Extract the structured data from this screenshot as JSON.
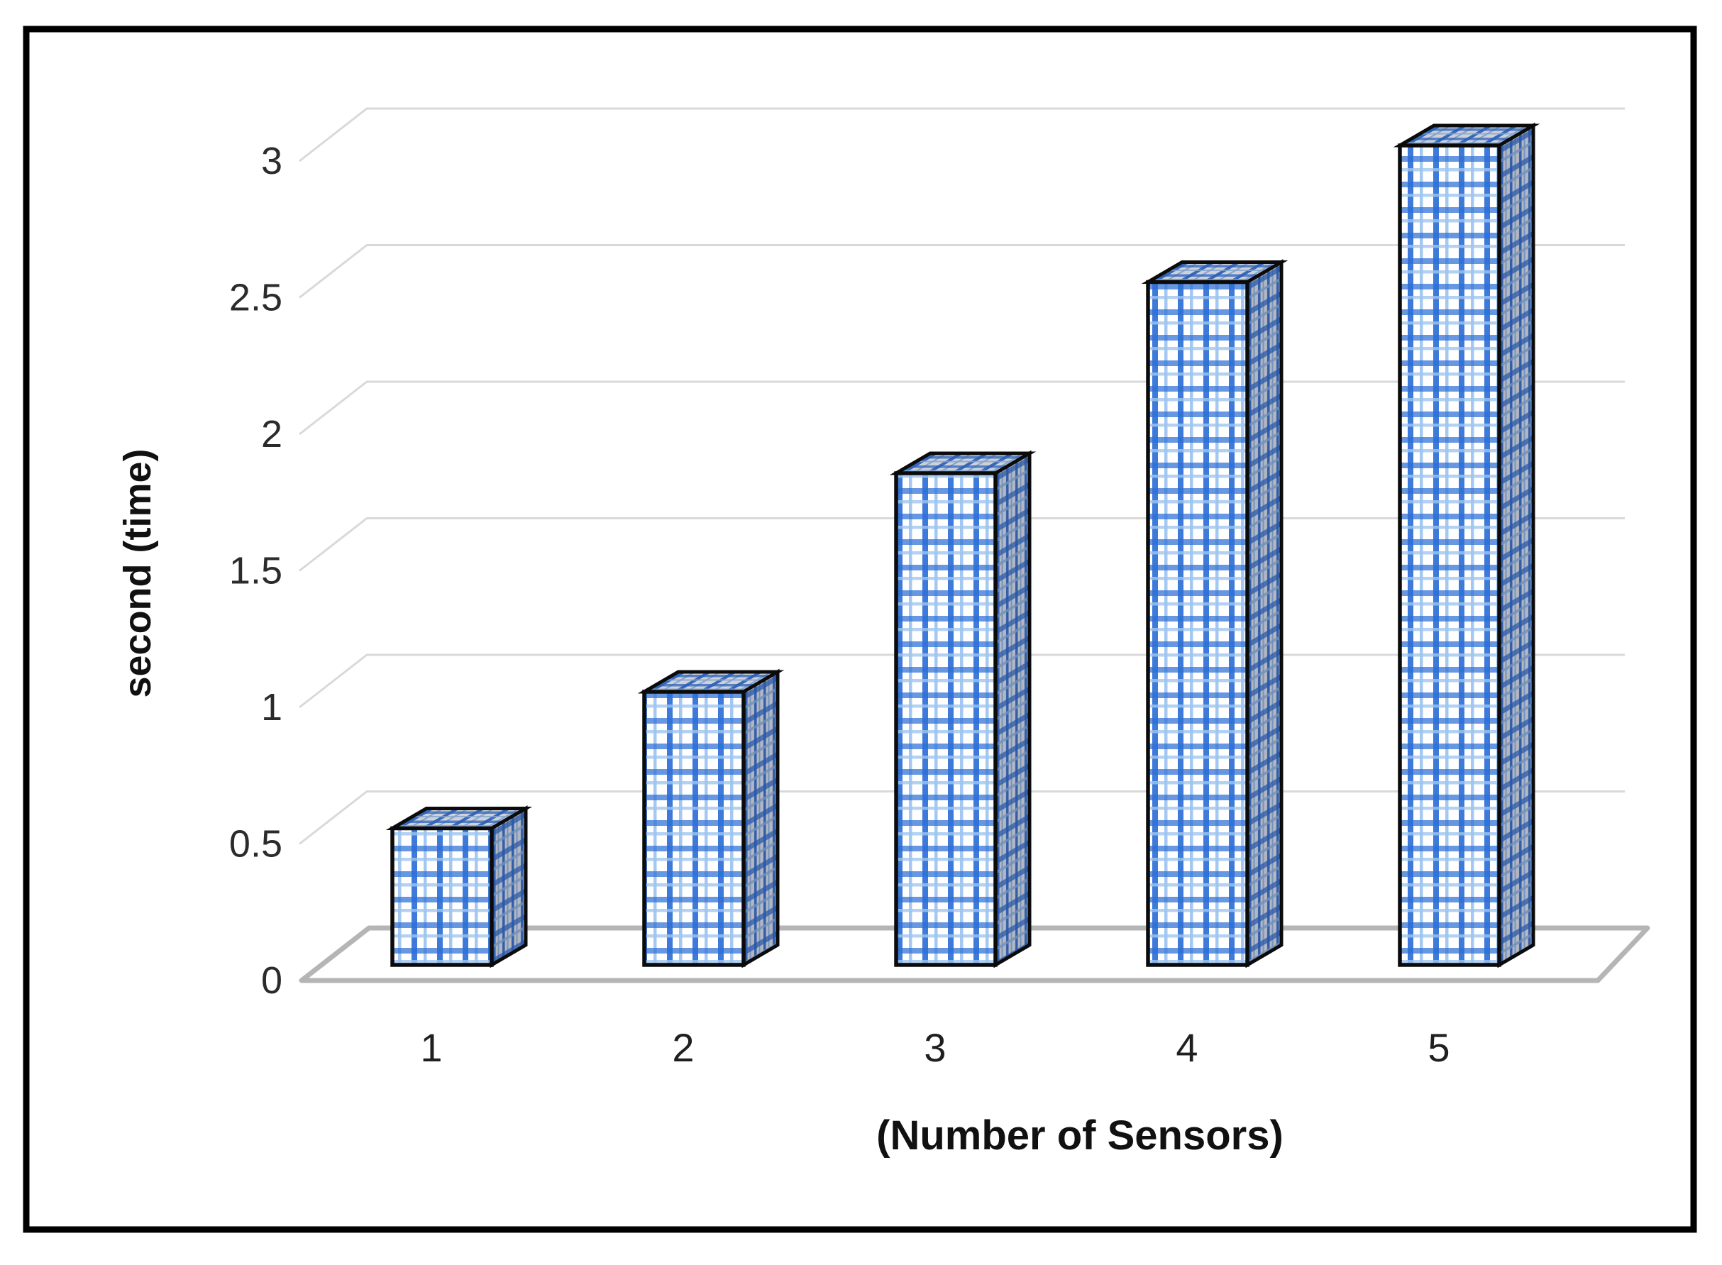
{
  "figure": {
    "background": "#ffffff",
    "border_color": "#000000"
  },
  "chart_data": {
    "type": "bar",
    "effect": "3d-column",
    "title": "",
    "xlabel": "(Number of Sensors)",
    "ylabel": "second (time)",
    "categories": [
      "1",
      "2",
      "3",
      "4",
      "5"
    ],
    "values": [
      0.5,
      1,
      1.8,
      2.5,
      3
    ],
    "yticks": [
      "3",
      "2.5",
      "2",
      "1.5",
      "1",
      "0.5",
      "0"
    ],
    "ylim": [
      0,
      3
    ],
    "ytick_step": 0.5,
    "grid": true,
    "legend": false,
    "bar_style": "blue plaid grid pattern on white",
    "colors": {
      "bar_line_strong": "#2e6fd6",
      "bar_line_light": "#9fc5f0",
      "bar_face_bg": "#ffffff",
      "bar_outline": "#0b0b0b",
      "top_face_shade": "rgba(30,45,80,0.22)",
      "side_face_shade": "rgba(30,45,80,0.34)",
      "gridline": "#d9d9d9",
      "floor_line": "#b5b5b5",
      "tick_text": "#2b2b2b",
      "category_text": "#1f1f1f",
      "title_text": "#111111"
    }
  }
}
